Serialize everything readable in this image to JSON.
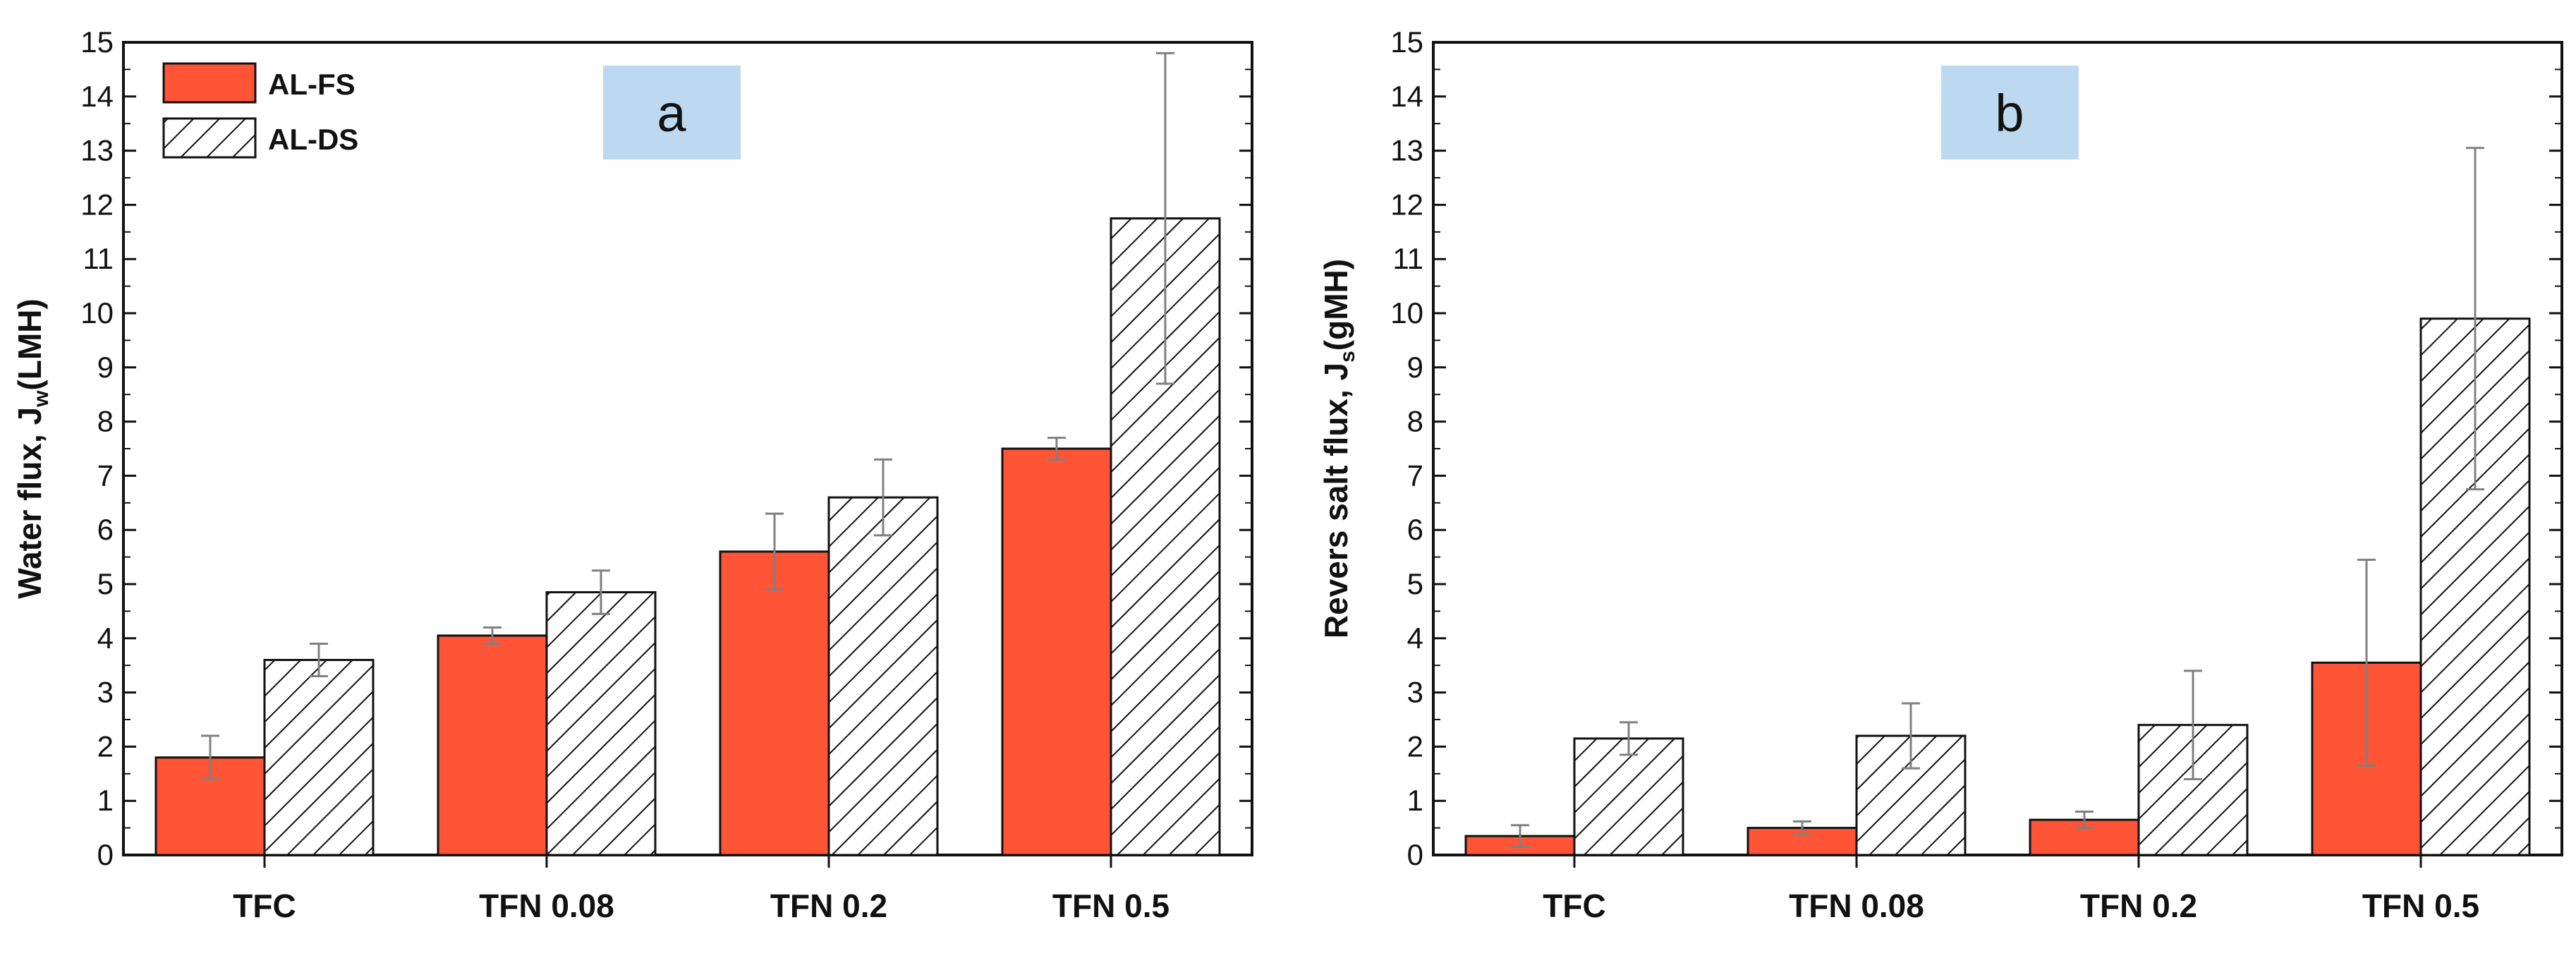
{
  "colors": {
    "fs_fill": "#ff5436",
    "ds_fill": "#ffffff",
    "bar_stroke": "#111111",
    "error_bar": "#808080",
    "tag_fill": "#bcd9ef"
  },
  "legend": {
    "fs_label": "AL-FS",
    "ds_label": "AL-DS"
  },
  "chart_data": [
    {
      "type": "bar",
      "panel_label": "a",
      "title": "",
      "xlabel": "",
      "ylabel_main": "Water flux, J",
      "ylabel_sub": "w",
      "ylabel_unit": "(LMH)",
      "ylim": [
        0,
        15
      ],
      "yticks": [
        0,
        1,
        2,
        3,
        4,
        5,
        6,
        7,
        8,
        9,
        10,
        11,
        12,
        13,
        14,
        15
      ],
      "categories": [
        "TFC",
        "TFN 0.08",
        "TFN 0.2",
        "TFN 0.5"
      ],
      "legend_position": "top-left",
      "series": [
        {
          "name": "AL-FS",
          "pattern": "solid",
          "values": [
            1.8,
            4.05,
            5.6,
            7.5
          ],
          "errors": [
            0.4,
            0.15,
            0.7,
            0.2
          ]
        },
        {
          "name": "AL-DS",
          "pattern": "hatched",
          "values": [
            3.6,
            4.85,
            6.6,
            11.75
          ],
          "errors": [
            0.3,
            0.4,
            0.7,
            3.05
          ]
        }
      ]
    },
    {
      "type": "bar",
      "panel_label": "b",
      "title": "",
      "xlabel": "",
      "ylabel_main": "Revers salt flux, J",
      "ylabel_sub": "s",
      "ylabel_unit": "(gMH)",
      "ylim": [
        0,
        15
      ],
      "yticks": [
        0,
        1,
        2,
        3,
        4,
        5,
        6,
        7,
        8,
        9,
        10,
        11,
        12,
        13,
        14,
        15
      ],
      "categories": [
        "TFC",
        "TFN 0.08",
        "TFN 0.2",
        "TFN 0.5"
      ],
      "legend_position": "none",
      "series": [
        {
          "name": "AL-FS",
          "pattern": "solid",
          "values": [
            0.35,
            0.5,
            0.65,
            3.55
          ],
          "errors": [
            0.2,
            0.12,
            0.15,
            1.9
          ]
        },
        {
          "name": "AL-DS",
          "pattern": "hatched",
          "values": [
            2.15,
            2.2,
            2.4,
            9.9
          ],
          "errors": [
            0.3,
            0.6,
            1.0,
            3.15
          ]
        }
      ]
    }
  ]
}
